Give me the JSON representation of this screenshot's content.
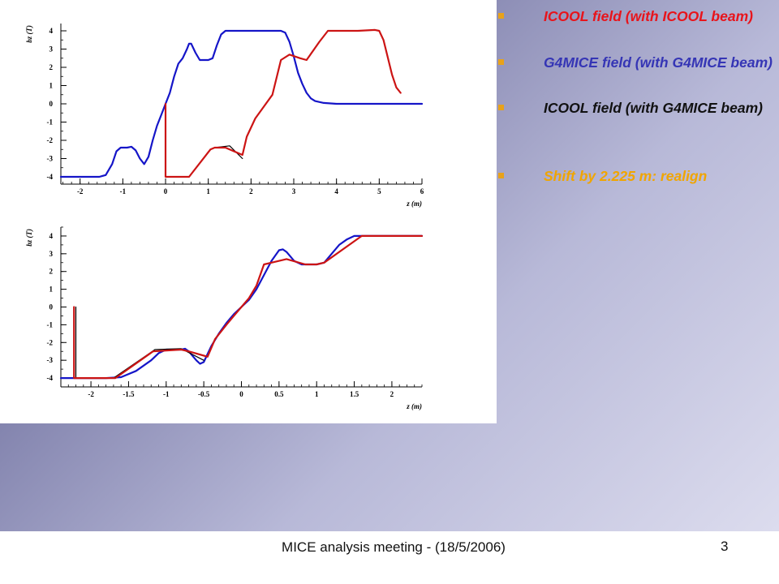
{
  "slide": {
    "footer": "MICE analysis meeting - (18/5/2006)",
    "page_number": "3"
  },
  "bullets": [
    {
      "text": "ICOOL field (with ICOOL beam)",
      "color": "#e8141b"
    },
    {
      "text": "G4MICE field (with G4MICE beam)",
      "color": "#3535b5"
    },
    {
      "text": "ICOOL field (with G4MICE beam)",
      "color": "#111111"
    },
    {
      "text": "Shift by 2.225 m: realign",
      "color": "#f0a500"
    }
  ],
  "colors": {
    "red": "#cc1414",
    "blue": "#1515c8",
    "black": "#000000",
    "bullet_marker": "#e8a21a"
  },
  "chart_data": [
    {
      "type": "line",
      "xlabel": "z (m)",
      "ylabel": "bz (T)",
      "xlim": [
        -2.45,
        6.0
      ],
      "ylim": [
        -4.4,
        4.4
      ],
      "xticks": [
        -2,
        -1,
        0,
        1,
        2,
        3,
        4,
        5,
        6
      ],
      "yticks": [
        -4,
        -3,
        -2,
        -1,
        0,
        1,
        2,
        3,
        4
      ],
      "series": [
        {
          "color": "blue",
          "x": [
            -2.45,
            -1.55,
            -1.4,
            -1.25,
            -1.15,
            -1.05,
            -0.9,
            -0.8,
            -0.7,
            -0.6,
            -0.5,
            -0.4,
            -0.3,
            -0.2,
            -0.1,
            0,
            0.1,
            0.2,
            0.3,
            0.4,
            0.5,
            0.55,
            0.6,
            0.7,
            0.8,
            0.9,
            1.0,
            1.1,
            1.2,
            1.3,
            1.4,
            1.5,
            2.0,
            2.5,
            2.7,
            2.8,
            2.9,
            3.0,
            3.1,
            3.2,
            3.3,
            3.4,
            3.5,
            3.7,
            4.0,
            5.0,
            6.0
          ],
          "y": [
            -4.0,
            -4.0,
            -3.9,
            -3.3,
            -2.6,
            -2.4,
            -2.4,
            -2.35,
            -2.55,
            -3.0,
            -3.3,
            -2.9,
            -2.0,
            -1.2,
            -0.6,
            0.0,
            0.6,
            1.5,
            2.2,
            2.5,
            3.0,
            3.3,
            3.3,
            2.8,
            2.4,
            2.4,
            2.4,
            2.5,
            3.2,
            3.8,
            4.0,
            4.0,
            4.0,
            4.0,
            4.0,
            3.9,
            3.4,
            2.6,
            1.7,
            1.1,
            0.6,
            0.3,
            0.15,
            0.05,
            0.0,
            0.0,
            0.0
          ]
        },
        {
          "color": "black",
          "x": [
            0,
            0,
            0.55,
            1.05,
            1.15,
            1.5,
            1.8
          ],
          "y": [
            0.0,
            -4.0,
            -4.0,
            -2.5,
            -2.4,
            -2.3,
            -3.0
          ]
        },
        {
          "color": "red",
          "x": [
            0,
            0,
            0.55,
            1.05,
            1.15,
            1.4,
            1.5,
            1.8,
            1.9,
            2.1,
            2.5,
            2.7,
            2.9,
            3.15,
            3.3,
            3.6,
            3.8,
            4.0,
            4.5,
            4.9,
            5.0,
            5.1,
            5.3,
            5.4,
            5.5
          ],
          "y": [
            0.0,
            -4.0,
            -4.0,
            -2.5,
            -2.4,
            -2.4,
            -2.5,
            -2.8,
            -1.8,
            -0.8,
            0.5,
            2.4,
            2.7,
            2.5,
            2.4,
            3.4,
            4.0,
            4.0,
            4.0,
            4.05,
            4.0,
            3.5,
            1.6,
            0.9,
            0.6
          ]
        }
      ]
    },
    {
      "type": "line",
      "xlabel": "z (m)",
      "ylabel": "bz (T)",
      "xlim": [
        -2.4,
        2.4
      ],
      "ylim": [
        -4.5,
        4.5
      ],
      "xticks": [
        -2,
        -1.5,
        -1,
        -0.5,
        0,
        0.5,
        1,
        1.5,
        2
      ],
      "yticks": [
        -4,
        -3,
        -2,
        -1,
        0,
        1,
        2,
        3,
        4
      ],
      "series": [
        {
          "color": "blue",
          "x": [
            -2.4,
            -1.8,
            -1.6,
            -1.4,
            -1.2,
            -1.1,
            -1.0,
            -0.9,
            -0.8,
            -0.75,
            -0.7,
            -0.6,
            -0.55,
            -0.5,
            -0.4,
            -0.3,
            -0.2,
            -0.1,
            0,
            0.1,
            0.2,
            0.3,
            0.4,
            0.5,
            0.55,
            0.6,
            0.7,
            0.8,
            1.0,
            1.1,
            1.2,
            1.3,
            1.4,
            1.5,
            1.6,
            2.4
          ],
          "y": [
            -4.0,
            -4.0,
            -3.95,
            -3.6,
            -3.0,
            -2.6,
            -2.4,
            -2.4,
            -2.4,
            -2.35,
            -2.5,
            -3.0,
            -3.2,
            -3.1,
            -2.2,
            -1.5,
            -0.9,
            -0.4,
            0.0,
            0.4,
            1.0,
            1.8,
            2.6,
            3.2,
            3.25,
            3.1,
            2.6,
            2.4,
            2.4,
            2.5,
            3.0,
            3.5,
            3.8,
            4.0,
            4.0,
            4.0
          ]
        },
        {
          "color": "black",
          "x": [
            -2.2,
            -2.2,
            -1.7,
            -1.15,
            -0.8,
            -0.5
          ],
          "y": [
            0.0,
            -4.0,
            -4.0,
            -2.4,
            -2.35,
            -3.0
          ]
        },
        {
          "color": "red",
          "x": [
            -2.225,
            -2.225,
            -1.675,
            -1.175,
            -0.8,
            -0.7,
            -0.45,
            -0.35,
            -0.2,
            -0.1,
            0,
            0.1,
            0.2,
            0.3,
            0.4,
            0.6,
            0.85,
            1.0,
            1.1,
            1.6,
            2.4
          ],
          "y": [
            0.0,
            -4.0,
            -4.0,
            -2.5,
            -2.4,
            -2.5,
            -2.8,
            -1.8,
            -1.0,
            -0.5,
            0.0,
            0.5,
            1.2,
            2.4,
            2.5,
            2.7,
            2.4,
            2.4,
            2.5,
            4.0,
            4.0
          ]
        }
      ]
    }
  ]
}
